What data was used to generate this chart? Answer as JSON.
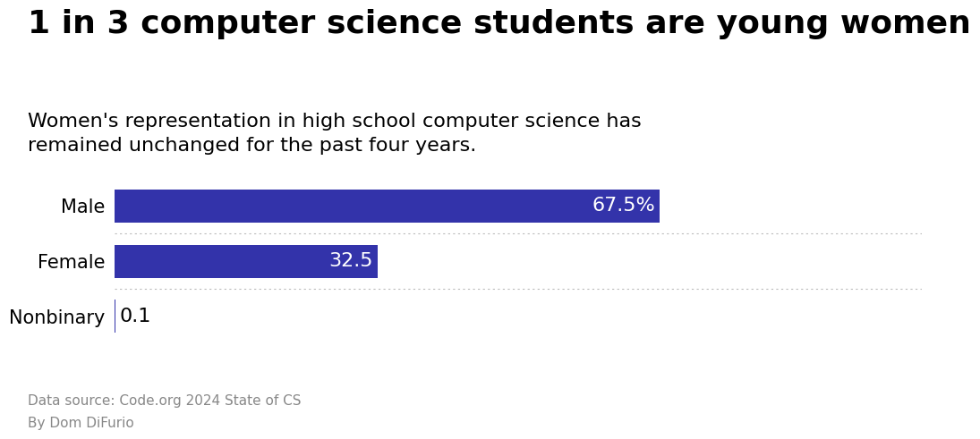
{
  "title": "1 in 3 computer science students are young women",
  "subtitle": "Women's representation in high school computer science has\nremained unchanged for the past four years.",
  "categories": [
    "Male",
    "Female",
    "Nonbinary"
  ],
  "values": [
    67.5,
    32.5,
    0.1
  ],
  "bar_color": "#3333aa",
  "bar_labels": [
    "67.5%",
    "32.5",
    "0.1"
  ],
  "label_colors": [
    "white",
    "white",
    "black"
  ],
  "footnote_line1": "Data source: Code.org 2024 State of CS",
  "footnote_line2": "By Dom DiFurio",
  "xlim": [
    0,
    100
  ],
  "background_color": "#ffffff",
  "title_fontsize": 26,
  "subtitle_fontsize": 16,
  "category_fontsize": 15,
  "bar_label_fontsize": 16,
  "footnote_fontsize": 11,
  "bar_height": 0.6
}
